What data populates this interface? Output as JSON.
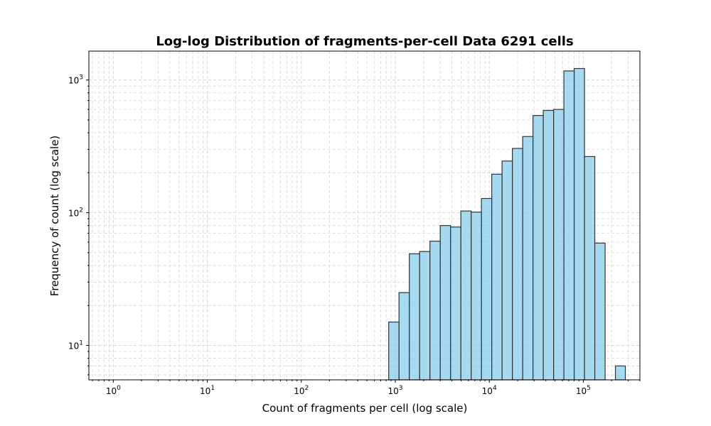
{
  "chart_data": {
    "type": "bar",
    "title": "Log-log Distribution of fragments-per-cell Data 6291 cells",
    "xlabel": "Count of fragments per cell (log scale)",
    "ylabel": "Frequency of count (log scale)",
    "x_scale": "log",
    "y_scale": "log",
    "xlim": [
      0.55,
      400000
    ],
    "ylim": [
      5.5,
      1650
    ],
    "grid": true,
    "bar_color": "#87ceeb",
    "bar_edge_color": "#333333",
    "x_ticks": [
      {
        "base": "10",
        "exp": "0"
      },
      {
        "base": "10",
        "exp": "1"
      },
      {
        "base": "10",
        "exp": "2"
      },
      {
        "base": "10",
        "exp": "3"
      },
      {
        "base": "10",
        "exp": "4"
      },
      {
        "base": "10",
        "exp": "5"
      }
    ],
    "y_ticks": [
      {
        "base": "10",
        "exp": "1"
      },
      {
        "base": "10",
        "exp": "2"
      },
      {
        "base": "10",
        "exp": "3"
      }
    ],
    "bin_edges": [
      851,
      1095,
      1410,
      1815,
      2336,
      3007,
      3870,
      4981,
      6411,
      8252,
      10621,
      13670,
      17595,
      22647,
      29149,
      37518,
      48289,
      62153,
      79997,
      102965,
      132526,
      170574,
      219545
    ],
    "values": [
      15,
      25,
      49,
      51,
      61,
      80,
      78,
      103,
      101,
      128,
      195,
      245,
      305,
      375,
      540,
      590,
      600,
      1170,
      1220,
      265,
      59,
      0,
      7
    ]
  }
}
